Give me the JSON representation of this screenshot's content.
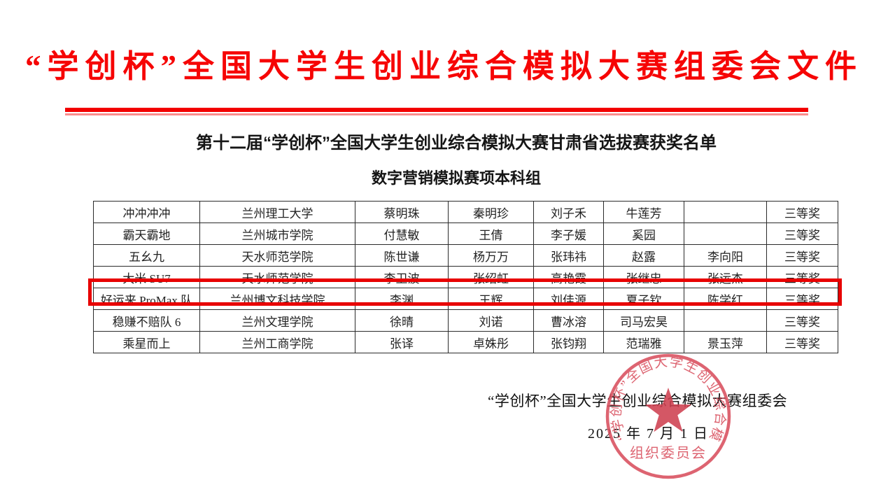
{
  "header": {
    "title": "“学创杯”全国大学生创业综合模拟大赛组委会文件"
  },
  "subtitle": "第十二届“学创杯”全国大学生创业综合模拟大赛甘肃省选拔赛获奖名单",
  "section_title": "数字营销模拟赛项本科组",
  "table": {
    "highlighted_row": 4,
    "rows": [
      [
        "冲冲冲冲",
        "兰州理工大学",
        "蔡明珠",
        "秦明珍",
        "刘子禾",
        "牛莲芳",
        "",
        "三等奖"
      ],
      [
        "霸天霸地",
        "兰州城市学院",
        "付慧敏",
        "王倩",
        "李子媛",
        "奚园",
        "",
        "三等奖"
      ],
      [
        "五幺九",
        "天水师范学院",
        "陈世谦",
        "杨万万",
        "张玮祎",
        "赵露",
        "李向阳",
        "三等奖"
      ],
      [
        "大米 SU7",
        "天水师范学院",
        "李卫波",
        "张绍虹",
        "高艳霞",
        "张继忠",
        "张运杰",
        "三等奖"
      ],
      [
        "好运来 ProMax 队",
        "兰州博文科技学院",
        "李渊",
        "王辉",
        "刘佳源",
        "夏子钦",
        "陈学红",
        "三等奖"
      ],
      [
        "稳赚不赔队 6",
        "兰州文理学院",
        "徐晴",
        "刘诺",
        "曹冰溶",
        "司马宏昊",
        "",
        "三等奖"
      ],
      [
        "乘星而上",
        "兰州工商学院",
        "张译",
        "卓姝彤",
        "张钧翔",
        "范瑞雅",
        "景玉萍",
        "三等奖"
      ]
    ]
  },
  "footer": {
    "signature": "“学创杯”全国大学生创业综合模拟大赛组委会",
    "date": "2025 年 7 月 1 日"
  },
  "stamp": {
    "ring_text": "“学创杯”全国大学生创业综合模拟大赛",
    "bottom_text": "组织委员会"
  },
  "colors": {
    "title_red": "#f60505",
    "rule_red": "#f20000",
    "rule_light_red": "#fb8d8d",
    "highlight_red": "#e80000",
    "stamp_red": "#d94f5e"
  }
}
